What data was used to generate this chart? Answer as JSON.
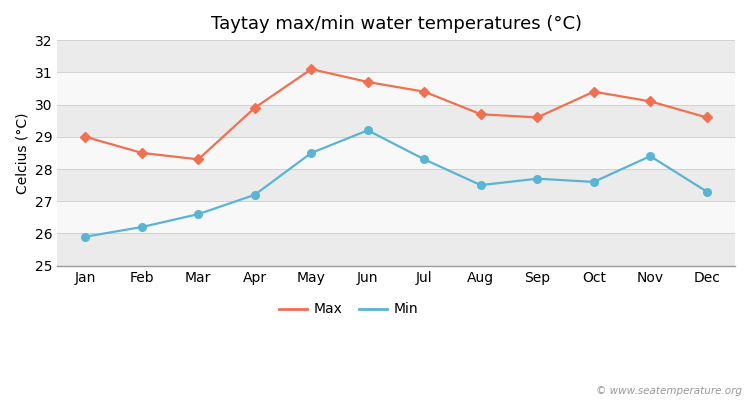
{
  "title": "Taytay max/min water temperatures (°C)",
  "ylabel": "Celcius (°C)",
  "months": [
    "Jan",
    "Feb",
    "Mar",
    "Apr",
    "May",
    "Jun",
    "Jul",
    "Aug",
    "Sep",
    "Oct",
    "Nov",
    "Dec"
  ],
  "max_temps": [
    29.0,
    28.5,
    28.3,
    29.9,
    31.1,
    30.7,
    30.4,
    29.7,
    29.6,
    30.4,
    30.1,
    29.6
  ],
  "min_temps": [
    25.9,
    26.2,
    26.6,
    27.2,
    28.5,
    29.2,
    28.3,
    27.5,
    27.7,
    27.6,
    28.4,
    27.3
  ],
  "max_color": "#f07050",
  "min_color": "#5ab4d4",
  "ylim": [
    25,
    32
  ],
  "yticks": [
    25,
    26,
    27,
    28,
    29,
    30,
    31,
    32
  ],
  "bg_color": "#ffffff",
  "plot_bg_color": "#ffffff",
  "band_color_even": "#ebebeb",
  "band_color_odd": "#f8f8f8",
  "watermark": "© www.seatemperature.org",
  "title_fontsize": 13,
  "label_fontsize": 10,
  "tick_fontsize": 10
}
